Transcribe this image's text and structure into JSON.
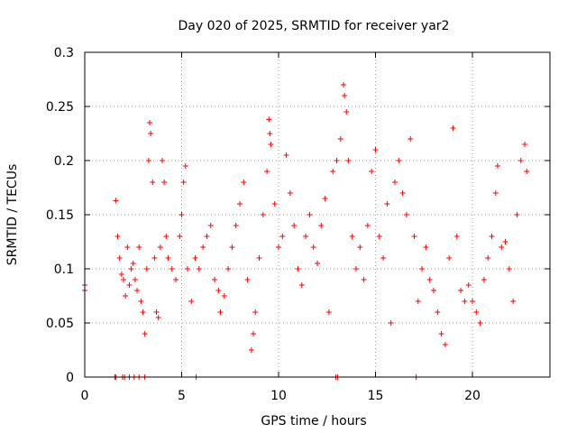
{
  "chart_data": {
    "type": "scatter",
    "title": "Day 020 of 2025, SRMTID for receiver yar2",
    "xlabel": "GPS time / hours",
    "ylabel": "SRMTID / TECUs",
    "xlim": [
      0,
      24
    ],
    "ylim": [
      0,
      0.3
    ],
    "x_ticks": [
      0,
      5,
      10,
      15,
      20
    ],
    "x_tick_labels": [
      "0",
      "5",
      "10",
      "15",
      "20"
    ],
    "y_ticks": [
      0,
      0.05,
      0.1,
      0.15,
      0.2,
      0.25,
      0.3
    ],
    "y_tick_labels": [
      "0",
      "0.05",
      "0.1",
      "0.15",
      "0.2",
      "0.25",
      "0.3"
    ],
    "grid": true,
    "marker": "plus",
    "series": [
      {
        "name": "SRMTID",
        "color": "#ff0000",
        "points": [
          [
            0.0,
            0.085
          ],
          [
            0.0,
            0.08
          ],
          [
            1.6,
            0.163
          ],
          [
            1.7,
            0.13
          ],
          [
            1.8,
            0.11
          ],
          [
            1.9,
            0.095
          ],
          [
            2.0,
            0.09
          ],
          [
            2.1,
            0.075
          ],
          [
            2.2,
            0.12
          ],
          [
            2.3,
            0.085
          ],
          [
            2.4,
            0.1
          ],
          [
            2.5,
            0.105
          ],
          [
            2.6,
            0.09
          ],
          [
            2.7,
            0.08
          ],
          [
            2.8,
            0.12
          ],
          [
            2.9,
            0.07
          ],
          [
            3.0,
            0.06
          ],
          [
            3.1,
            0.04
          ],
          [
            3.2,
            0.1
          ],
          [
            3.3,
            0.2
          ],
          [
            3.35,
            0.235
          ],
          [
            3.4,
            0.225
          ],
          [
            3.5,
            0.18
          ],
          [
            3.6,
            0.11
          ],
          [
            3.7,
            0.06
          ],
          [
            3.8,
            0.055
          ],
          [
            3.9,
            0.12
          ],
          [
            4.0,
            0.2
          ],
          [
            4.1,
            0.18
          ],
          [
            4.2,
            0.13
          ],
          [
            4.3,
            0.11
          ],
          [
            4.5,
            0.1
          ],
          [
            4.7,
            0.09
          ],
          [
            4.9,
            0.13
          ],
          [
            5.0,
            0.15
          ],
          [
            5.1,
            0.18
          ],
          [
            5.2,
            0.195
          ],
          [
            5.3,
            0.1
          ],
          [
            5.5,
            0.07
          ],
          [
            5.7,
            0.11
          ],
          [
            5.9,
            0.1
          ],
          [
            6.1,
            0.12
          ],
          [
            6.3,
            0.13
          ],
          [
            6.5,
            0.14
          ],
          [
            6.7,
            0.09
          ],
          [
            6.9,
            0.08
          ],
          [
            7.0,
            0.06
          ],
          [
            7.2,
            0.075
          ],
          [
            7.4,
            0.1
          ],
          [
            7.6,
            0.12
          ],
          [
            7.8,
            0.14
          ],
          [
            8.0,
            0.16
          ],
          [
            8.2,
            0.18
          ],
          [
            8.4,
            0.09
          ],
          [
            8.6,
            0.025
          ],
          [
            8.7,
            0.04
          ],
          [
            8.8,
            0.06
          ],
          [
            9.0,
            0.11
          ],
          [
            9.2,
            0.15
          ],
          [
            9.4,
            0.19
          ],
          [
            9.5,
            0.238
          ],
          [
            9.55,
            0.225
          ],
          [
            9.6,
            0.215
          ],
          [
            9.8,
            0.16
          ],
          [
            10.0,
            0.12
          ],
          [
            10.2,
            0.13
          ],
          [
            10.4,
            0.205
          ],
          [
            10.6,
            0.17
          ],
          [
            10.8,
            0.14
          ],
          [
            11.0,
            0.1
          ],
          [
            11.2,
            0.085
          ],
          [
            11.4,
            0.13
          ],
          [
            11.6,
            0.15
          ],
          [
            11.8,
            0.12
          ],
          [
            12.0,
            0.105
          ],
          [
            12.2,
            0.14
          ],
          [
            12.4,
            0.165
          ],
          [
            12.6,
            0.06
          ],
          [
            12.8,
            0.19
          ],
          [
            13.0,
            0.2
          ],
          [
            13.2,
            0.22
          ],
          [
            13.35,
            0.27
          ],
          [
            13.4,
            0.26
          ],
          [
            13.5,
            0.245
          ],
          [
            13.6,
            0.2
          ],
          [
            13.8,
            0.13
          ],
          [
            14.0,
            0.1
          ],
          [
            14.2,
            0.12
          ],
          [
            14.4,
            0.09
          ],
          [
            14.6,
            0.14
          ],
          [
            14.8,
            0.19
          ],
          [
            15.0,
            0.21
          ],
          [
            15.2,
            0.13
          ],
          [
            15.4,
            0.11
          ],
          [
            15.6,
            0.16
          ],
          [
            15.8,
            0.05
          ],
          [
            16.0,
            0.18
          ],
          [
            16.2,
            0.2
          ],
          [
            16.4,
            0.17
          ],
          [
            16.6,
            0.15
          ],
          [
            16.8,
            0.22
          ],
          [
            17.0,
            0.13
          ],
          [
            17.2,
            0.07
          ],
          [
            17.4,
            0.1
          ],
          [
            17.6,
            0.12
          ],
          [
            17.8,
            0.09
          ],
          [
            18.0,
            0.08
          ],
          [
            18.2,
            0.06
          ],
          [
            18.4,
            0.04
          ],
          [
            18.6,
            0.03
          ],
          [
            18.8,
            0.11
          ],
          [
            19.0,
            0.23
          ],
          [
            19.2,
            0.13
          ],
          [
            19.4,
            0.08
          ],
          [
            19.6,
            0.07
          ],
          [
            19.8,
            0.085
          ],
          [
            20.0,
            0.07
          ],
          [
            20.2,
            0.06
          ],
          [
            20.4,
            0.05
          ],
          [
            20.6,
            0.09
          ],
          [
            20.8,
            0.11
          ],
          [
            21.0,
            0.13
          ],
          [
            21.2,
            0.17
          ],
          [
            21.3,
            0.195
          ],
          [
            21.5,
            0.12
          ],
          [
            21.7,
            0.125
          ],
          [
            21.9,
            0.1
          ],
          [
            22.1,
            0.07
          ],
          [
            22.3,
            0.15
          ],
          [
            22.5,
            0.2
          ],
          [
            22.7,
            0.215
          ],
          [
            22.8,
            0.19
          ]
        ],
        "zero_points": [
          1.55,
          1.6,
          1.95,
          2.05,
          2.3,
          2.55,
          2.8,
          3.1,
          5.75,
          12.95,
          13.05,
          17.1
        ]
      }
    ]
  }
}
